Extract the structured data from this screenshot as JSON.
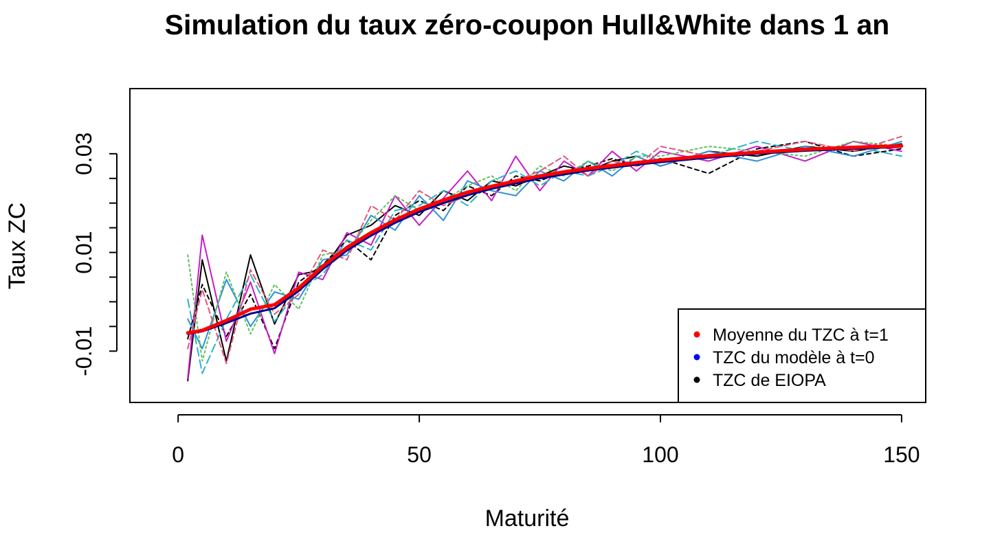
{
  "chart_data": {
    "type": "line",
    "title": "Simulation du taux zéro-coupon Hull&White dans 1 an",
    "xlabel": "Maturité",
    "ylabel": "Taux ZC",
    "xlim": [
      -10,
      155
    ],
    "ylim": [
      -0.0204,
      0.0432
    ],
    "x_ticks": [
      0,
      50,
      100,
      150
    ],
    "x_tick_labels": [
      "0",
      "50",
      "100",
      "150"
    ],
    "y_ticks": [
      -0.01,
      -0.005,
      0.0,
      0.005,
      0.01,
      0.015,
      0.02,
      0.025,
      0.03
    ],
    "y_tick_labels": [
      "-0.01",
      "",
      "",
      "",
      "0.01",
      "",
      "",
      "",
      "0.03"
    ],
    "grid": false,
    "legend_position": "bottom-right",
    "legend": [
      {
        "label": "Moyenne du TZC à t=1",
        "color": "#ff0000"
      },
      {
        "label": "TZC du modèle à t=0",
        "color": "#0000ff"
      },
      {
        "label": "TZC de EIOPA",
        "color": "#000000"
      }
    ],
    "series": [
      {
        "name": "Moyenne du TZC à t=1",
        "color": "#ff0000",
        "line_width": 5,
        "dash": "solid",
        "x": [
          2,
          5,
          10,
          15,
          20,
          25,
          30,
          35,
          40,
          45,
          50,
          55,
          60,
          65,
          70,
          75,
          80,
          85,
          90,
          95,
          100,
          110,
          120,
          130,
          140,
          150
        ],
        "y": [
          -0.0063,
          -0.0058,
          -0.0038,
          -0.0015,
          -0.0006,
          0.0028,
          0.0072,
          0.011,
          0.014,
          0.0166,
          0.0188,
          0.0206,
          0.0222,
          0.0234,
          0.0245,
          0.0255,
          0.0263,
          0.027,
          0.0276,
          0.0282,
          0.0287,
          0.0296,
          0.0303,
          0.0309,
          0.0313,
          0.0316
        ]
      },
      {
        "name": "TZC du modèle à t=0",
        "color": "#00008b",
        "line_width": 3,
        "dash": "solid",
        "x": [
          2,
          5,
          10,
          15,
          20,
          25,
          30,
          35,
          40,
          45,
          50,
          55,
          60,
          65,
          70,
          75,
          80,
          85,
          90,
          95,
          100,
          110,
          120,
          130,
          140,
          150
        ],
        "y": [
          -0.0065,
          -0.006,
          -0.0043,
          -0.0024,
          -0.0013,
          0.0022,
          0.0066,
          0.0104,
          0.0134,
          0.016,
          0.0182,
          0.02,
          0.0216,
          0.0229,
          0.024,
          0.025,
          0.0258,
          0.0266,
          0.0272,
          0.0278,
          0.0283,
          0.0292,
          0.03,
          0.0306,
          0.031,
          0.0314
        ]
      },
      {
        "name": "",
        "color": "#000000",
        "line_width": 2,
        "dash": "6,5",
        "x": [
          2,
          5,
          10,
          15,
          20,
          25,
          30,
          35,
          40,
          45,
          50,
          55,
          60,
          65,
          70,
          75,
          80,
          85,
          90,
          95,
          100,
          110,
          120,
          130,
          140,
          150
        ],
        "y": [
          -0.0075,
          0.0035,
          -0.007,
          0.0015,
          -0.0095,
          0.004,
          0.0075,
          0.0125,
          0.0085,
          0.0175,
          0.0205,
          0.0185,
          0.0235,
          0.0215,
          0.0255,
          0.0245,
          0.0265,
          0.0275,
          0.029,
          0.0275,
          0.029,
          0.026,
          0.031,
          0.0325,
          0.0295,
          0.031
        ]
      },
      {
        "name": "",
        "color": "#000000",
        "line_width": 2,
        "dash": "solid",
        "x": [
          2,
          5,
          10,
          15,
          20,
          25,
          30,
          35,
          40,
          45,
          50,
          55,
          60,
          65,
          70,
          75,
          80,
          85,
          90,
          95,
          100,
          110,
          120,
          130,
          140,
          150
        ],
        "y": [
          -0.016,
          0.0085,
          -0.012,
          0.0095,
          -0.0045,
          0.0055,
          0.0065,
          0.0135,
          0.0155,
          0.0195,
          0.0175,
          0.0225,
          0.0205,
          0.0245,
          0.0235,
          0.0255,
          0.0275,
          0.0265,
          0.0285,
          0.0295,
          0.0275,
          0.0305,
          0.0295,
          0.0315,
          0.0305,
          0.032
        ]
      },
      {
        "name": "",
        "color": "#c71bc7",
        "line_width": 2,
        "dash": "solid",
        "x": [
          2,
          5,
          10,
          15,
          20,
          25,
          30,
          35,
          40,
          45,
          50,
          55,
          60,
          65,
          70,
          75,
          80,
          85,
          90,
          95,
          100,
          110,
          120,
          130,
          140,
          150
        ],
        "y": [
          -0.0155,
          0.0135,
          -0.008,
          0.004,
          -0.0105,
          0.006,
          0.0045,
          0.014,
          0.0115,
          0.0215,
          0.0155,
          0.021,
          0.0265,
          0.0205,
          0.0295,
          0.0225,
          0.0285,
          0.0255,
          0.0305,
          0.0265,
          0.0305,
          0.0285,
          0.0315,
          0.0285,
          0.0325,
          0.0305
        ]
      },
      {
        "name": "",
        "color": "#2e8fdb",
        "line_width": 2,
        "dash": "solid",
        "x": [
          2,
          5,
          10,
          15,
          20,
          25,
          30,
          35,
          40,
          45,
          50,
          55,
          60,
          65,
          70,
          75,
          80,
          85,
          90,
          95,
          100,
          110,
          120,
          130,
          140,
          150
        ],
        "y": [
          -0.0035,
          -0.0095,
          0.0045,
          -0.005,
          0.002,
          0.0005,
          0.0085,
          0.0095,
          0.0175,
          0.0145,
          0.0215,
          0.0165,
          0.0245,
          0.0225,
          0.0215,
          0.0265,
          0.0245,
          0.0285,
          0.0255,
          0.0295,
          0.0275,
          0.0305,
          0.0285,
          0.0315,
          0.0295,
          0.0325
        ]
      },
      {
        "name": "",
        "color": "#28b4c8",
        "line_width": 2,
        "dash": "12,6",
        "x": [
          2,
          5,
          10,
          15,
          20,
          25,
          30,
          35,
          40,
          45,
          50,
          55,
          60,
          65,
          70,
          75,
          80,
          85,
          90,
          95,
          100,
          110,
          120,
          130,
          140,
          150
        ],
        "y": [
          0.0005,
          -0.0145,
          -0.0035,
          0.0055,
          -0.004,
          0.0025,
          0.0055,
          0.0125,
          0.0105,
          0.0185,
          0.0195,
          0.0225,
          0.0195,
          0.0245,
          0.0265,
          0.0235,
          0.0265,
          0.0255,
          0.0275,
          0.0305,
          0.0285,
          0.0295,
          0.0325,
          0.0305,
          0.0315,
          0.0295
        ]
      },
      {
        "name": "",
        "color": "#5cc25c",
        "line_width": 2,
        "dash": "3,4",
        "x": [
          2,
          5,
          10,
          15,
          20,
          25,
          30,
          35,
          40,
          45,
          50,
          55,
          60,
          65,
          70,
          75,
          80,
          85,
          90,
          95,
          100,
          110,
          120,
          130,
          140,
          150
        ],
        "y": [
          0.0095,
          -0.012,
          0.006,
          -0.0065,
          0.0035,
          -0.0015,
          0.0095,
          0.0105,
          0.0165,
          0.0215,
          0.0185,
          0.0205,
          0.0235,
          0.0255,
          0.0225,
          0.0275,
          0.0255,
          0.0285,
          0.0265,
          0.0295,
          0.0295,
          0.0315,
          0.0305,
          0.0295,
          0.0325,
          0.0315
        ]
      },
      {
        "name": "",
        "color": "#e0567a",
        "line_width": 2,
        "dash": "8,5",
        "x": [
          2,
          5,
          10,
          15,
          20,
          25,
          30,
          35,
          40,
          45,
          50,
          55,
          60,
          65,
          70,
          75,
          80,
          85,
          90,
          95,
          100,
          110,
          120,
          130,
          140,
          150
        ],
        "y": [
          -0.0095,
          0.0025,
          -0.0125,
          0.0065,
          -0.0025,
          0.0015,
          0.0105,
          0.0085,
          0.0195,
          0.0165,
          0.0225,
          0.0195,
          0.0215,
          0.0235,
          0.0245,
          0.0265,
          0.0295,
          0.0255,
          0.0285,
          0.0275,
          0.0315,
          0.0295,
          0.0305,
          0.0325,
          0.0305,
          0.0335
        ]
      }
    ]
  }
}
